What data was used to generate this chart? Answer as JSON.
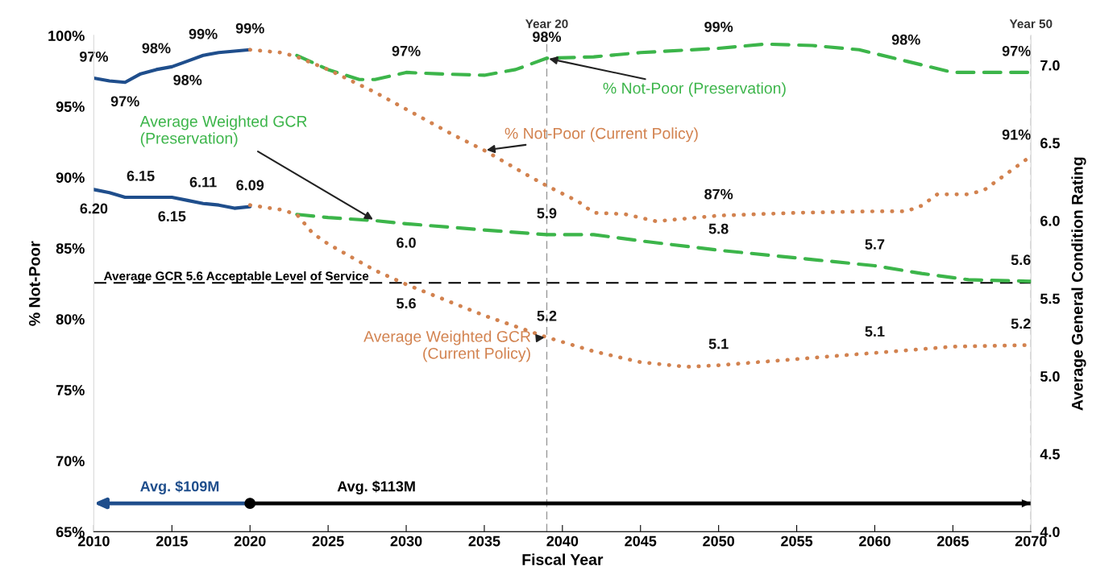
{
  "chart_data": {
    "type": "line",
    "xlabel": "Fiscal Year",
    "ylabel": "% Not-Poor",
    "y2label": "Average General Condition Rating",
    "xlim": [
      2010,
      2070
    ],
    "xticks": [
      2010,
      2015,
      2020,
      2025,
      2030,
      2035,
      2040,
      2045,
      2050,
      2055,
      2060,
      2065,
      2070
    ],
    "ylim": [
      65,
      100
    ],
    "yticks": [
      {
        "value": 65,
        "label": "65%"
      },
      {
        "value": 70,
        "label": "70%"
      },
      {
        "value": 75,
        "label": "75%"
      },
      {
        "value": 80,
        "label": "80%"
      },
      {
        "value": 85,
        "label": "85%"
      },
      {
        "value": 90,
        "label": "90%"
      },
      {
        "value": 95,
        "label": "95%"
      },
      {
        "value": 100,
        "label": "100%"
      }
    ],
    "y2lim": [
      4.0,
      7.19
    ],
    "y2ticks": [
      {
        "value": 4.0,
        "label": "4.0"
      },
      {
        "value": 4.5,
        "label": "4.5"
      },
      {
        "value": 5.0,
        "label": "5.0"
      },
      {
        "value": 5.5,
        "label": "5.5"
      },
      {
        "value": 6.0,
        "label": "6.0"
      },
      {
        "value": 6.5,
        "label": "6.5"
      },
      {
        "value": 7.0,
        "label": "7.0"
      }
    ],
    "grid": false,
    "marker": "none",
    "series": [
      {
        "color": "#1f4e8c",
        "line_style": "solid",
        "x": [
          2010,
          2011,
          2012,
          2013,
          2014,
          2015,
          2016,
          2017,
          2018,
          2019,
          2020
        ],
        "values": [
          97.0,
          96.8,
          96.7,
          97.3,
          97.6,
          97.8,
          98.2,
          98.6,
          98.8,
          98.9,
          99.0
        ],
        "value_labels": [
          "97%",
          null,
          "97%",
          null,
          "98%",
          null,
          "98%",
          "99%",
          null,
          null,
          "99%"
        ]
      },
      {
        "color": "#1f4e8c",
        "line_style": "solid",
        "axis": "y2",
        "x": [
          2010,
          2011,
          2012,
          2013,
          2014,
          2015,
          2016,
          2017,
          2018,
          2019,
          2020
        ],
        "values": [
          6.2,
          6.18,
          6.15,
          6.15,
          6.15,
          6.15,
          6.13,
          6.11,
          6.1,
          6.08,
          6.09
        ],
        "value_labels": [
          "6.20",
          null,
          null,
          "6.15",
          null,
          "6.15",
          null,
          "6.11",
          null,
          null,
          "6.09"
        ]
      },
      {
        "name": "% Not-Poor (Preservation)",
        "color": "#3cb54a",
        "line_style": "dashed",
        "x": [
          2023,
          2025,
          2027,
          2028,
          2030,
          2032,
          2035,
          2037,
          2039,
          2042,
          2045,
          2050,
          2053,
          2056,
          2059,
          2062,
          2065,
          2067,
          2070
        ],
        "values": [
          98.6,
          97.6,
          96.9,
          96.9,
          97.4,
          97.3,
          97.2,
          97.6,
          98.4,
          98.5,
          98.8,
          99.1,
          99.4,
          99.3,
          99.0,
          98.2,
          97.4,
          97.4,
          97.4
        ],
        "value_labels": [
          null,
          null,
          null,
          null,
          "97%",
          null,
          null,
          null,
          "98%",
          null,
          null,
          "99%",
          null,
          null,
          null,
          "98%",
          null,
          null,
          "97%"
        ]
      },
      {
        "name": "% Not-Poor (Current Policy)",
        "color": "#d2824f",
        "line_style": "dotted",
        "x": [
          2020,
          2022,
          2023,
          2025,
          2028,
          2030,
          2033,
          2035,
          2038,
          2039,
          2041,
          2042,
          2044,
          2046,
          2048,
          2050,
          2055,
          2060,
          2062,
          2063,
          2064,
          2066,
          2067,
          2068,
          2070
        ],
        "values": [
          99.0,
          98.8,
          98.5,
          97.6,
          96.0,
          94.8,
          93.0,
          91.9,
          90.0,
          89.4,
          88.3,
          87.5,
          87.4,
          86.9,
          87.1,
          87.3,
          87.5,
          87.6,
          87.6,
          88.0,
          88.8,
          88.8,
          89.1,
          89.9,
          91.5
        ],
        "value_labels": [
          null,
          null,
          null,
          null,
          null,
          null,
          null,
          null,
          null,
          null,
          null,
          null,
          null,
          null,
          null,
          "87%",
          null,
          null,
          null,
          null,
          null,
          null,
          null,
          null,
          "91%"
        ]
      },
      {
        "name": "Average Weighted GCR\n(Preservation)",
        "color": "#3cb54a",
        "line_style": "dashed",
        "axis": "y2",
        "x": [
          2023,
          2025,
          2028,
          2030,
          2035,
          2039,
          2042,
          2045,
          2050,
          2055,
          2060,
          2063,
          2066,
          2070
        ],
        "values": [
          6.04,
          6.02,
          6.0,
          5.98,
          5.94,
          5.91,
          5.91,
          5.87,
          5.81,
          5.76,
          5.71,
          5.66,
          5.62,
          5.61
        ],
        "value_labels": [
          null,
          null,
          null,
          "6.0",
          null,
          "5.9",
          null,
          null,
          "5.8",
          null,
          "5.7",
          null,
          null,
          "5.6"
        ]
      },
      {
        "name": "Average Weighted GCR\n(Current Policy)",
        "color": "#d2824f",
        "line_style": "dotted",
        "axis": "y2",
        "x": [
          2020,
          2022,
          2023,
          2024,
          2025,
          2028,
          2030,
          2035,
          2039,
          2042,
          2045,
          2048,
          2050,
          2055,
          2060,
          2065,
          2070
        ],
        "values": [
          6.1,
          6.07,
          6.04,
          5.92,
          5.85,
          5.68,
          5.59,
          5.39,
          5.25,
          5.16,
          5.09,
          5.06,
          5.07,
          5.11,
          5.15,
          5.19,
          5.2
        ],
        "value_labels": [
          null,
          null,
          null,
          null,
          null,
          null,
          "5.6",
          null,
          "5.2",
          null,
          null,
          null,
          "5.1",
          null,
          "5.1",
          null,
          "5.2"
        ]
      },
      {
        "name": "Avg. $113M",
        "color": "#000000",
        "line_style": "solid",
        "marker": "circle",
        "x": [
          2020,
          2070
        ],
        "values": [
          67,
          67
        ]
      }
    ],
    "ref_lines": [
      {
        "axis": "x",
        "value": 2039,
        "label": "Year 20",
        "color": "#999999",
        "line_style": "dashed"
      },
      {
        "axis": "x",
        "value": 2070,
        "label": "Year 50",
        "color": "#999999",
        "line_style": "dashed"
      },
      {
        "axis": "y2",
        "value": 5.6,
        "label": "Average GCR 5.6 Acceptable Level of Service",
        "color": "#000000",
        "line_style": "dashed"
      }
    ],
    "annotations": [
      "Avg. $109M"
    ]
  }
}
